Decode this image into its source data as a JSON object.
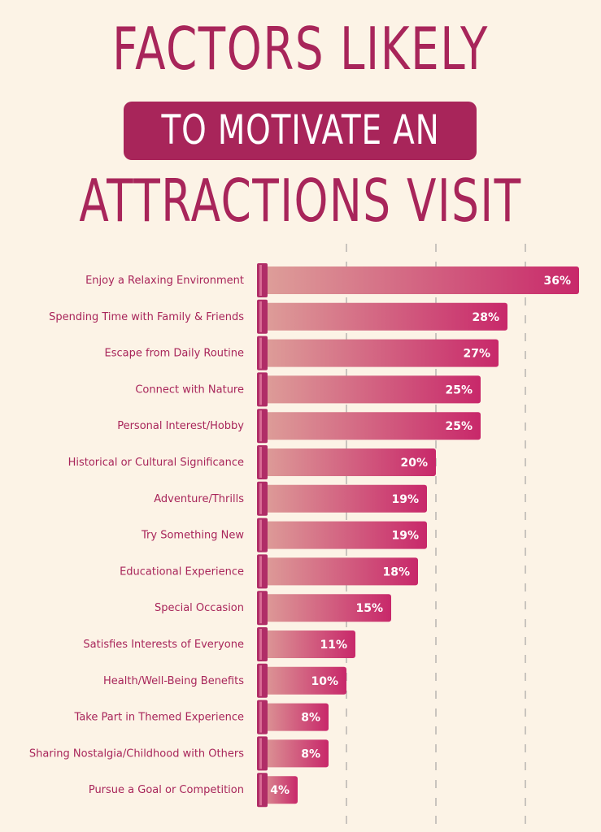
{
  "title": {
    "line1": "FACTORS LIKELY",
    "line2": "TO MOTIVATE AN",
    "line3": "ATTRACTIONS VISIT"
  },
  "colors": {
    "title": "#a8255a",
    "banner": "#a8255a",
    "bar_start": "#dea19a",
    "bar_end": "#c8286a",
    "cap": "#b02d67",
    "background": "#fcf3e6",
    "gridline": "#c9c4be"
  },
  "chart_data": {
    "type": "bar",
    "orientation": "horizontal",
    "title": "FACTORS LIKELY TO MOTIVATE AN ATTRACTIONS VISIT",
    "categories": [
      "Enjoy a Relaxing Environment",
      "Spending Time with Family & Friends",
      "Escape from Daily Routine",
      "Connect with Nature",
      "Personal Interest/Hobby",
      "Historical or Cultural Significance",
      "Adventure/Thrills",
      "Try Something New",
      "Educational Experience",
      "Special Occasion",
      "Satisfies Interests of Everyone",
      "Health/Well-Being Benefits",
      "Take Part in Themed Experience",
      "Sharing Nostalgia/Childhood with Others",
      "Pursue a Goal or Competition"
    ],
    "values": [
      36,
      28,
      27,
      25,
      25,
      20,
      19,
      19,
      18,
      15,
      11,
      10,
      8,
      8,
      4
    ],
    "value_labels": [
      "36%",
      "28%",
      "27%",
      "25%",
      "25%",
      "20%",
      "19%",
      "19%",
      "18%",
      "15%",
      "11%",
      "10%",
      "8%",
      "8%",
      "4%"
    ],
    "xlim": [
      0,
      36
    ],
    "grid": true,
    "gridline_values": [
      10,
      20,
      30
    ],
    "legend": "none"
  }
}
